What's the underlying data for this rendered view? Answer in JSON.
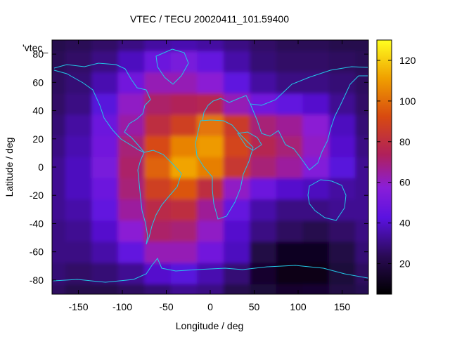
{
  "chart_data": {
    "type": "heatmap",
    "title": "VTEC / TECU 20020411_101.59400",
    "xlabel": "Longitude / deg",
    "ylabel": "Latitude / deg",
    "legend_key": "'vtec_",
    "xlim": [
      -180,
      180
    ],
    "ylim": [
      -90,
      90
    ],
    "x_ticks": [
      -150,
      -100,
      -50,
      0,
      50,
      100,
      150
    ],
    "y_ticks": [
      -80,
      -60,
      -40,
      -20,
      0,
      20,
      40,
      60,
      80
    ],
    "colorbar": {
      "min": 5,
      "max": 130,
      "ticks": [
        20,
        40,
        60,
        80,
        100,
        120
      ]
    },
    "grid": {
      "lon_start": -180,
      "lon_step": 30,
      "lat_start": -90,
      "lat_step": 15
    },
    "values": [
      [
        25,
        22,
        22,
        25,
        28,
        32,
        30,
        22,
        18,
        15,
        16,
        20,
        23
      ],
      [
        28,
        26,
        28,
        32,
        40,
        42,
        36,
        28,
        15,
        10,
        10,
        18,
        25
      ],
      [
        30,
        30,
        35,
        45,
        62,
        62,
        50,
        38,
        20,
        12,
        12,
        20,
        28
      ],
      [
        30,
        32,
        40,
        58,
        72,
        70,
        60,
        40,
        30,
        25,
        22,
        26,
        30
      ],
      [
        32,
        35,
        45,
        65,
        78,
        80,
        66,
        46,
        35,
        30,
        30,
        32,
        32
      ],
      [
        32,
        38,
        48,
        70,
        88,
        95,
        80,
        60,
        48,
        40,
        38,
        34,
        32
      ],
      [
        32,
        38,
        52,
        72,
        98,
        112,
        104,
        84,
        70,
        65,
        55,
        42,
        32
      ],
      [
        30,
        36,
        50,
        70,
        92,
        105,
        110,
        90,
        76,
        70,
        60,
        40,
        30
      ],
      [
        28,
        34,
        48,
        64,
        80,
        88,
        102,
        86,
        70,
        66,
        58,
        38,
        28
      ],
      [
        26,
        30,
        42,
        60,
        72,
        74,
        76,
        62,
        50,
        45,
        40,
        32,
        26
      ],
      [
        25,
        28,
        36,
        50,
        62,
        62,
        58,
        44,
        34,
        30,
        30,
        28,
        25
      ],
      [
        24,
        26,
        30,
        38,
        48,
        52,
        46,
        35,
        28,
        26,
        26,
        25,
        24
      ],
      [
        22,
        24,
        26,
        30,
        34,
        36,
        34,
        30,
        26,
        24,
        24,
        22,
        22
      ]
    ]
  }
}
